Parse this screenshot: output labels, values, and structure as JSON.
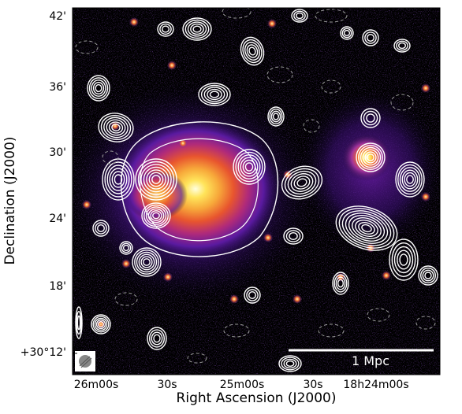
{
  "figure": {
    "xlabel": "Right Ascension (J2000)",
    "ylabel": "Declination (J2000)",
    "ra_ticks": [
      "26m00s",
      "30s",
      "25m00s",
      "30s",
      "18h24m00s"
    ],
    "dec_ticks": [
      "42'",
      "36'",
      "30'",
      "24'",
      "18'",
      "+30°12'"
    ],
    "scalebar_label": "1 Mpc",
    "colormap": [
      "#000000",
      "#1a0a3a",
      "#3a0f73",
      "#6a1ca8",
      "#a1329c",
      "#d9465f",
      "#f26b2a",
      "#f7a83a",
      "#ffe45a",
      "#ffffe0"
    ],
    "contour_color": "#ffffff",
    "negative_contour_color": "#9a9a9a"
  }
}
